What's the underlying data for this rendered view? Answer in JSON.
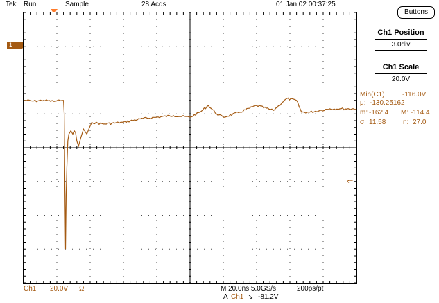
{
  "topbar": {
    "brand": "Tek",
    "run_state": "Run",
    "acq_mode": "Sample",
    "acq_count": "28 Acqs",
    "datetime": "01 Jan 02 00:37:25"
  },
  "channel_marker": "1",
  "trigger_level_arrow": "⇐",
  "bottom": {
    "ch_label": "Ch1",
    "ch_scale": "20.0V",
    "ch_coupling": "Ω",
    "timebase": "M 20.0ns 5.0GS/s",
    "record": "200ps/pt",
    "trigger_prefix": "A",
    "trigger_source": "Ch1",
    "trigger_slope": "↘",
    "trigger_level": "-81.2V"
  },
  "side_panel": {
    "buttons_label": "Buttons",
    "position_title": "Ch1 Position",
    "position_value": "3.0div",
    "scale_title": "Ch1 Scale",
    "scale_value": "20.0V"
  },
  "measurements": {
    "min_label": "Min(C1)",
    "min_value": "-116.0V",
    "mean_label": "μ:",
    "mean_value": "-130.25162",
    "m_label": "m:",
    "m_value": "-162.4",
    "M_label": "M:",
    "M_value": "-114.4",
    "sigma_label": "σ:",
    "sigma_value": "11.58",
    "n_label": "n:",
    "n_value": "27.0"
  },
  "colors": {
    "trace": "#a45a12",
    "trigger_marker": "#ff7b2a",
    "grid": "#000000"
  },
  "waveform": {
    "x_unit": "div",
    "y_unit": "div",
    "points": [
      [
        0,
        -2.6
      ],
      [
        0.3,
        -2.62
      ],
      [
        0.6,
        -2.6
      ],
      [
        0.9,
        -2.63
      ],
      [
        1.1,
        -2.61
      ],
      [
        1.2,
        -2.6
      ],
      [
        1.22,
        -3.0
      ],
      [
        1.24,
        -5.0
      ],
      [
        1.26,
        -7.0
      ],
      [
        1.28,
        -5.4
      ],
      [
        1.3,
        -4.6
      ],
      [
        1.33,
        -3.8
      ],
      [
        1.36,
        -3.6
      ],
      [
        1.42,
        -3.5
      ],
      [
        1.48,
        -3.6
      ],
      [
        1.52,
        -3.5
      ],
      [
        1.56,
        -3.55
      ],
      [
        1.6,
        -3.8
      ],
      [
        1.65,
        -3.95
      ],
      [
        1.72,
        -3.7
      ],
      [
        1.8,
        -3.45
      ],
      [
        1.9,
        -3.6
      ],
      [
        1.96,
        -3.45
      ],
      [
        2.05,
        -3.25
      ],
      [
        2.4,
        -3.3
      ],
      [
        3.0,
        -3.25
      ],
      [
        3.5,
        -3.15
      ],
      [
        4.0,
        -3.1
      ],
      [
        4.5,
        -3.05
      ],
      [
        5.0,
        -3.1
      ],
      [
        5.3,
        -2.95
      ],
      [
        5.55,
        -2.75
      ],
      [
        5.8,
        -3.0
      ],
      [
        6.0,
        -3.1
      ],
      [
        6.5,
        -2.95
      ],
      [
        7.0,
        -2.75
      ],
      [
        7.5,
        -2.9
      ],
      [
        7.9,
        -2.55
      ],
      [
        8.2,
        -2.6
      ],
      [
        8.35,
        -2.95
      ],
      [
        8.6,
        -2.95
      ],
      [
        8.9,
        -2.9
      ],
      [
        9.2,
        -2.85
      ],
      [
        9.5,
        -2.85
      ],
      [
        10.0,
        -2.85
      ]
    ]
  }
}
